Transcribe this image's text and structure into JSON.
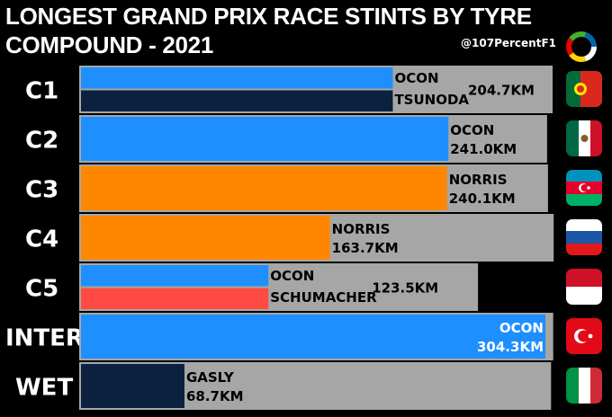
{
  "header": {
    "title_line1": "LONGEST GRAND PRIX RACE STINTS BY TYRE",
    "title_line2": "COMPOUND - 2021",
    "handle": "@107PercentF1"
  },
  "colors": {
    "background": "#000000",
    "track": "#a6a6a6",
    "ocon": "#1f8fff",
    "tsunoda": "#0c2040",
    "norris": "#ff8700",
    "schumacher": "#ff4b44",
    "gasly": "#0c2040"
  },
  "chart_data": {
    "type": "bar",
    "orientation": "horizontal",
    "title": "LONGEST GRAND PRIX RACE STINTS BY TYRE COMPOUND - 2021",
    "unit": "km",
    "xlim": [
      0,
      304.3
    ],
    "rows": [
      {
        "compound": "C1",
        "drivers": [
          "OCON",
          "TSUNODA"
        ],
        "stint_km": 204.7,
        "value_label": "204.7KM",
        "race_km": 309.0,
        "flag": "portugal-flag",
        "shared": true,
        "bar_colors": [
          "#1f8fff",
          "#0c2040"
        ]
      },
      {
        "compound": "C2",
        "drivers": [
          "OCON"
        ],
        "stint_km": 241.0,
        "value_label": "241.0KM",
        "race_km": 305.4,
        "flag": "mexico-flag",
        "shared": false,
        "bar_colors": [
          "#1f8fff"
        ]
      },
      {
        "compound": "C3",
        "drivers": [
          "NORRIS"
        ],
        "stint_km": 240.1,
        "value_label": "240.1KM",
        "race_km": 306.0,
        "flag": "azerbaijan-flag",
        "shared": false,
        "bar_colors": [
          "#ff8700"
        ]
      },
      {
        "compound": "C4",
        "drivers": [
          "NORRIS"
        ],
        "stint_km": 163.7,
        "value_label": "163.7KM",
        "race_km": 309.7,
        "flag": "russia-flag",
        "shared": false,
        "bar_colors": [
          "#ff8700"
        ]
      },
      {
        "compound": "C5",
        "drivers": [
          "OCON",
          "SCHUMACHER"
        ],
        "stint_km": 123.5,
        "value_label": "123.5KM",
        "race_km": 260.3,
        "flag": "monaco-flag",
        "shared": true,
        "bar_colors": [
          "#1f8fff",
          "#ff4b44"
        ]
      },
      {
        "compound": "INTER",
        "drivers": [
          "OCON"
        ],
        "stint_km": 304.3,
        "value_label": "304.3KM",
        "race_km": 309.4,
        "flag": "turkey-flag",
        "shared": false,
        "bar_colors": [
          "#1f8fff"
        ]
      },
      {
        "compound": "WET",
        "drivers": [
          "GASLY"
        ],
        "stint_km": 68.7,
        "value_label": "68.7KM",
        "race_km": 308.0,
        "flag": "italy-flag",
        "shared": false,
        "bar_colors": [
          "#0c2040"
        ]
      }
    ]
  }
}
